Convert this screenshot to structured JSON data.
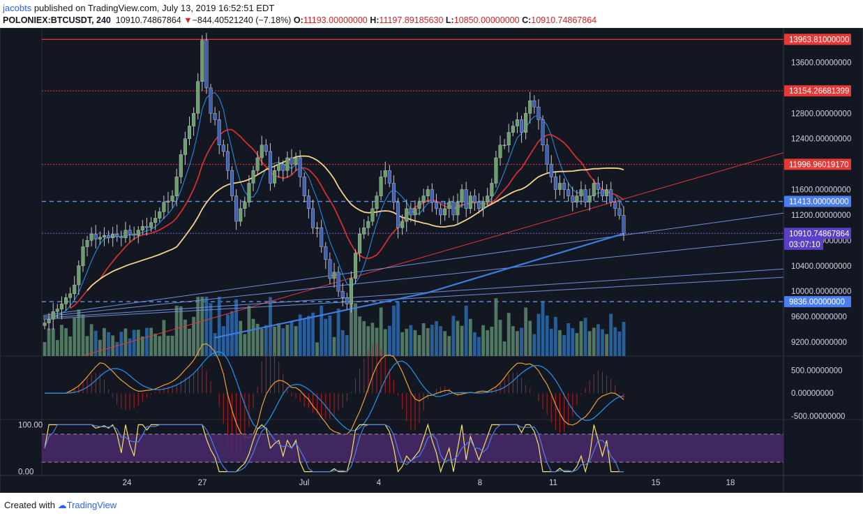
{
  "header": {
    "user": "jacobts",
    "published_text": "published on TradingView.com, July 13, 2019 16:52:51 EDT",
    "symbol": "POLONIEX:BTCUSDT, 240",
    "last": "10910.74867864",
    "change_arrow": "▼",
    "change": "−844.40521240 (−7.18%)",
    "o_label": "O:",
    "o_value": "11193.00000000",
    "h_label": "H:",
    "h_value": "11197.89185630",
    "l_label": "L:",
    "l_value": "10850.00000000",
    "c_label": "C:",
    "c_value": "10910.74867864"
  },
  "footer": {
    "created_with": "Created with",
    "brand": "TradingView"
  },
  "colors": {
    "background": "#131722",
    "bull": "#6aa06a",
    "bear": "#3f5fb5",
    "ma_red": "#d32f2f",
    "ma_orange": "#f6d48a",
    "ma_blue_thin": "#2196f3",
    "ma_blue_thick": "#3d7de0",
    "res_line": "#e53935",
    "sup_dash": "#5a8ae0",
    "rsi_band": "#4a2a6a"
  },
  "chart_data": {
    "type": "candlestick",
    "x_ticks": [
      "24",
      "27",
      "Jul",
      "4",
      "8",
      "11",
      "15",
      "18"
    ],
    "price_axis": {
      "ticks": [
        "13600.00000000",
        "12800.00000000",
        "12400.00000000",
        "11600.00000000",
        "11200.00000000",
        "10800.00000000",
        "10400.00000000",
        "10000.00000000",
        "9600.00000000",
        "9200.00000000"
      ],
      "range": [
        8980,
        14100
      ]
    },
    "price_tags": [
      {
        "label": "13963.81000000",
        "value": 13963.81,
        "color": "#e53935",
        "text_color": "#ffffff"
      },
      {
        "label": "13154.26681399",
        "value": 13154.27,
        "color": "#e53935",
        "text_color": "#ffffff"
      },
      {
        "label": "11996.96019170",
        "value": 11996.96,
        "color": "#e53935",
        "text_color": "#ffffff"
      },
      {
        "label": "11413.00000000",
        "value": 11413.0,
        "color": "#4a7ff0",
        "text_color": "#ffffff"
      },
      {
        "label": "10910.74867864",
        "value": 10910.75,
        "color": "#5b3fc4",
        "text_color": "#ffffff"
      },
      {
        "label": "03:07:10",
        "value": 10740,
        "color": "#5b3fc4",
        "text_color": "#ffffff"
      },
      {
        "label": "9836.00000000",
        "value": 9836.0,
        "color": "#4a7ff0",
        "text_color": "#ffffff"
      }
    ],
    "horizontal_levels": [
      {
        "value": 13963.81,
        "style": "solid",
        "color": "#e53935"
      },
      {
        "value": 13154.27,
        "style": "dotted",
        "color": "#e53935"
      },
      {
        "value": 11996.96,
        "style": "dotted",
        "color": "#e53935"
      },
      {
        "value": 11413.0,
        "style": "dashed",
        "color": "#5a8ae0"
      },
      {
        "value": 10910.75,
        "style": "dotted",
        "color": "#7c6cd8"
      },
      {
        "value": 9836.0,
        "style": "dashed",
        "color": "#5a8ae0"
      }
    ],
    "candles_close": [
      9500,
      9560,
      9680,
      9720,
      9800,
      9900,
      9960,
      10100,
      10400,
      10700,
      10800,
      10900,
      10820,
      10850,
      10880,
      10840,
      10900,
      10860,
      10840,
      10960,
      10900,
      10880,
      10960,
      11020,
      11000,
      11080,
      11150,
      11250,
      11400,
      11420,
      11500,
      11800,
      12150,
      12400,
      12600,
      12800,
      13300,
      13950,
      13200,
      12800,
      12700,
      12300,
      12200,
      11900,
      11500,
      11100,
      11300,
      11400,
      11700,
      11900,
      12100,
      12300,
      12200,
      11700,
      11900,
      12000,
      11900,
      12100,
      12000,
      12100,
      11800,
      11500,
      11300,
      11000,
      11000,
      10700,
      10500,
      10200,
      10300,
      10000,
      9900,
      9800,
      10200,
      10600,
      10900,
      11000,
      11100,
      11300,
      11500,
      11800,
      11900,
      11700,
      11400,
      11000,
      11100,
      11300,
      11200,
      11300,
      11400,
      11500,
      11600,
      11400,
      11300,
      11200,
      11300,
      11400,
      11200,
      11400,
      11600,
      11300,
      11500,
      11400,
      11300,
      11400,
      11500,
      11700,
      12100,
      12300,
      12300,
      12500,
      12600,
      12700,
      12500,
      12800,
      13000,
      12900,
      12700,
      12300,
      12000,
      11800,
      11600,
      11700,
      11600,
      11500,
      11400,
      11500,
      11600,
      11400,
      11500,
      11700,
      11600,
      11500,
      11600,
      11400,
      11300,
      11193,
      10911
    ],
    "volume_max": 1.0,
    "macd_axis": {
      "ticks": [
        "500.00000000",
        "0.00000000",
        "-500.00000000"
      ],
      "range": [
        -560,
        780
      ]
    },
    "rsi_axis": {
      "ticks": [
        "100.00",
        "0.00"
      ],
      "range": [
        -8,
        108
      ],
      "band": [
        20,
        80
      ]
    },
    "series_labels": []
  }
}
